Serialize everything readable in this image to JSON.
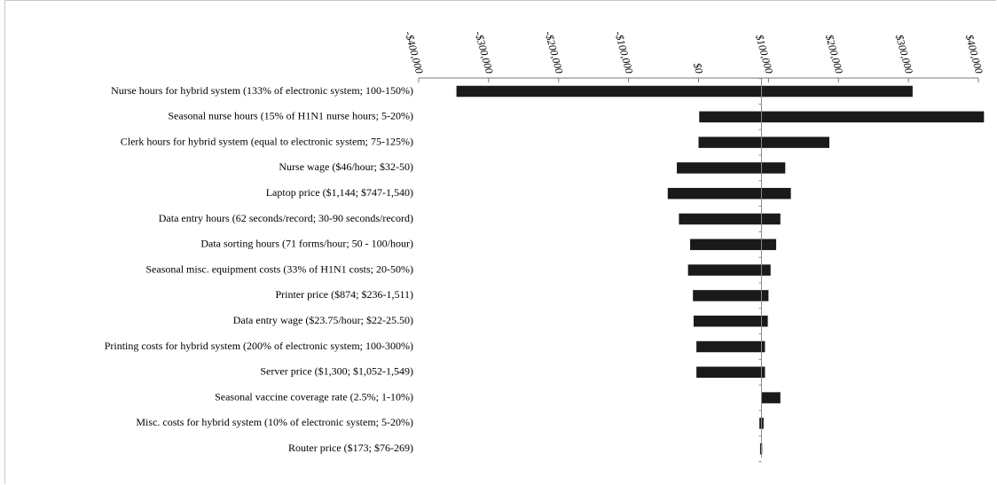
{
  "chart_data": {
    "type": "bar",
    "orientation": "horizontal",
    "subtype": "tornado",
    "baseline": 90000,
    "xlim": [
      -400000,
      400000
    ],
    "x_ticks": [
      -400000,
      -300000,
      -200000,
      -100000,
      0,
      100000,
      200000,
      300000,
      400000
    ],
    "x_tick_labels": [
      "-$400,000",
      "-$300,000",
      "-$200,000",
      "-$100,000",
      "$0",
      "$100,000",
      "$200,000",
      "$300,000",
      "$400,000"
    ],
    "bar_color": "#1a1a1a",
    "categories": [
      "Nurse hours for hybrid system (133% of electronic system; 100-150%)",
      "Seasonal nurse hours (15% of H1N1 nurse hours; 5-20%)",
      "Clerk hours for hybrid system (equal to electronic system; 75-125%)",
      "Nurse wage ($46/hour; $32-50)",
      "Laptop price ($1,144; $747-1,540)",
      "Data entry hours (62 seconds/record; 30-90 seconds/record)",
      "Data sorting hours (71 forms/hour; 50 - 100/hour)",
      "Seasonal misc. equipment costs (33% of H1N1 costs; 20-50%)",
      "Printer price ($874; $236-1,511)",
      "Data entry wage ($23.75/hour; $22-25.50)",
      "Printing costs for hybrid system (200% of electronic system; 100-300%)",
      "Server price ($1,300; $1,052-1,549)",
      "Seasonal vaccine coverage rate (2.5%; 1-10%)",
      "Misc. costs for hybrid system (10% of electronic system; 5-20%)",
      "Router price ($173; $76-269)"
    ],
    "low": [
      -346000,
      1000,
      0,
      -31000,
      -44000,
      -28000,
      -12000,
      -15000,
      -8000,
      -7000,
      -3000,
      -3000,
      90000,
      87000,
      88000
    ],
    "high": [
      306000,
      408000,
      187000,
      124000,
      132000,
      117000,
      111000,
      103000,
      100000,
      99000,
      95000,
      95000,
      117000,
      93000,
      91000
    ]
  }
}
